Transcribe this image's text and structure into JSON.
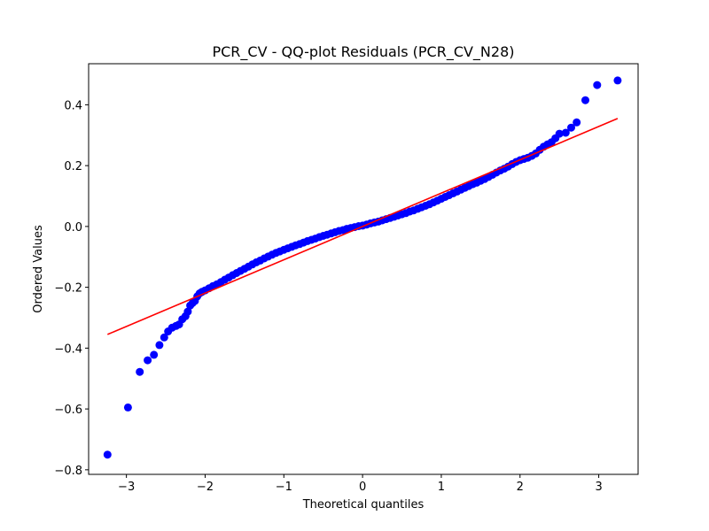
{
  "chart_data": {
    "type": "scatter",
    "title": "PCR_CV - QQ-plot Residuals (PCR_CV_N28)",
    "xlabel": "Theoretical quantiles",
    "ylabel": "Ordered Values",
    "xlim": [
      -3.48,
      3.5
    ],
    "ylim": [
      -0.815,
      0.535
    ],
    "grid": false,
    "legend": "none",
    "xticks": [
      -3,
      -2,
      -1,
      0,
      1,
      2,
      3
    ],
    "xtick_labels": [
      "−3",
      "−2",
      "−1",
      "0",
      "1",
      "2",
      "3"
    ],
    "yticks": [
      -0.8,
      -0.6,
      -0.4,
      -0.2,
      0.0,
      0.2,
      0.4
    ],
    "ytick_labels": [
      "−0.8",
      "−0.6",
      "−0.4",
      "−0.2",
      "0.0",
      "0.2",
      "0.4"
    ],
    "series": [
      {
        "kind": "points",
        "color": "#0000ff",
        "x": [
          -3.24,
          -2.98,
          -2.83,
          -2.73,
          -2.65,
          -2.58,
          -2.52,
          -2.47,
          -2.42,
          -2.37,
          -2.33,
          -2.29,
          -2.25,
          -2.22,
          -2.19,
          -2.16,
          -2.13,
          -2.1,
          -2.07,
          -2.04,
          -2.0,
          -1.95,
          -1.9,
          -1.85,
          -1.8,
          -1.75,
          -1.7,
          -1.65,
          -1.6,
          -1.55,
          -1.5,
          -1.45,
          -1.4,
          -1.35,
          -1.3,
          -1.25,
          -1.2,
          -1.15,
          -1.1,
          -1.05,
          -1.0,
          -0.95,
          -0.9,
          -0.85,
          -0.8,
          -0.75,
          -0.7,
          -0.65,
          -0.6,
          -0.55,
          -0.5,
          -0.45,
          -0.4,
          -0.35,
          -0.3,
          -0.25,
          -0.2,
          -0.15,
          -0.1,
          -0.05,
          0.0,
          0.05,
          0.1,
          0.15,
          0.2,
          0.25,
          0.3,
          0.35,
          0.4,
          0.45,
          0.5,
          0.55,
          0.6,
          0.65,
          0.7,
          0.75,
          0.8,
          0.85,
          0.9,
          0.95,
          1.0,
          1.05,
          1.1,
          1.15,
          1.2,
          1.25,
          1.3,
          1.35,
          1.4,
          1.45,
          1.5,
          1.55,
          1.6,
          1.65,
          1.7,
          1.75,
          1.8,
          1.85,
          1.9,
          1.95,
          2.0,
          2.05,
          2.1,
          2.15,
          2.2,
          2.25,
          2.3,
          2.35,
          2.4,
          2.45,
          2.5,
          2.58,
          2.65,
          2.72,
          2.83,
          2.98,
          3.24
        ],
        "y": [
          -0.75,
          -0.595,
          -0.478,
          -0.44,
          -0.422,
          -0.39,
          -0.365,
          -0.345,
          -0.333,
          -0.327,
          -0.322,
          -0.305,
          -0.295,
          -0.28,
          -0.26,
          -0.252,
          -0.245,
          -0.23,
          -0.22,
          -0.215,
          -0.21,
          -0.203,
          -0.196,
          -0.19,
          -0.183,
          -0.175,
          -0.168,
          -0.16,
          -0.153,
          -0.146,
          -0.139,
          -0.132,
          -0.125,
          -0.118,
          -0.112,
          -0.105,
          -0.099,
          -0.093,
          -0.087,
          -0.082,
          -0.077,
          -0.072,
          -0.067,
          -0.062,
          -0.058,
          -0.053,
          -0.048,
          -0.044,
          -0.04,
          -0.035,
          -0.031,
          -0.027,
          -0.023,
          -0.019,
          -0.015,
          -0.012,
          -0.008,
          -0.005,
          -0.002,
          0.001,
          0.003,
          0.006,
          0.01,
          0.013,
          0.016,
          0.02,
          0.024,
          0.028,
          0.032,
          0.036,
          0.04,
          0.044,
          0.049,
          0.053,
          0.058,
          0.063,
          0.068,
          0.073,
          0.079,
          0.085,
          0.091,
          0.097,
          0.103,
          0.109,
          0.115,
          0.121,
          0.127,
          0.133,
          0.139,
          0.144,
          0.15,
          0.156,
          0.163,
          0.17,
          0.177,
          0.184,
          0.19,
          0.197,
          0.205,
          0.212,
          0.218,
          0.222,
          0.226,
          0.232,
          0.24,
          0.252,
          0.262,
          0.27,
          0.277,
          0.29,
          0.305,
          0.308,
          0.325,
          0.342,
          0.415,
          0.465,
          0.48
        ]
      },
      {
        "kind": "line",
        "color": "#ff0000",
        "x": [
          -3.24,
          3.24
        ],
        "y": [
          -0.355,
          0.355
        ]
      }
    ]
  }
}
